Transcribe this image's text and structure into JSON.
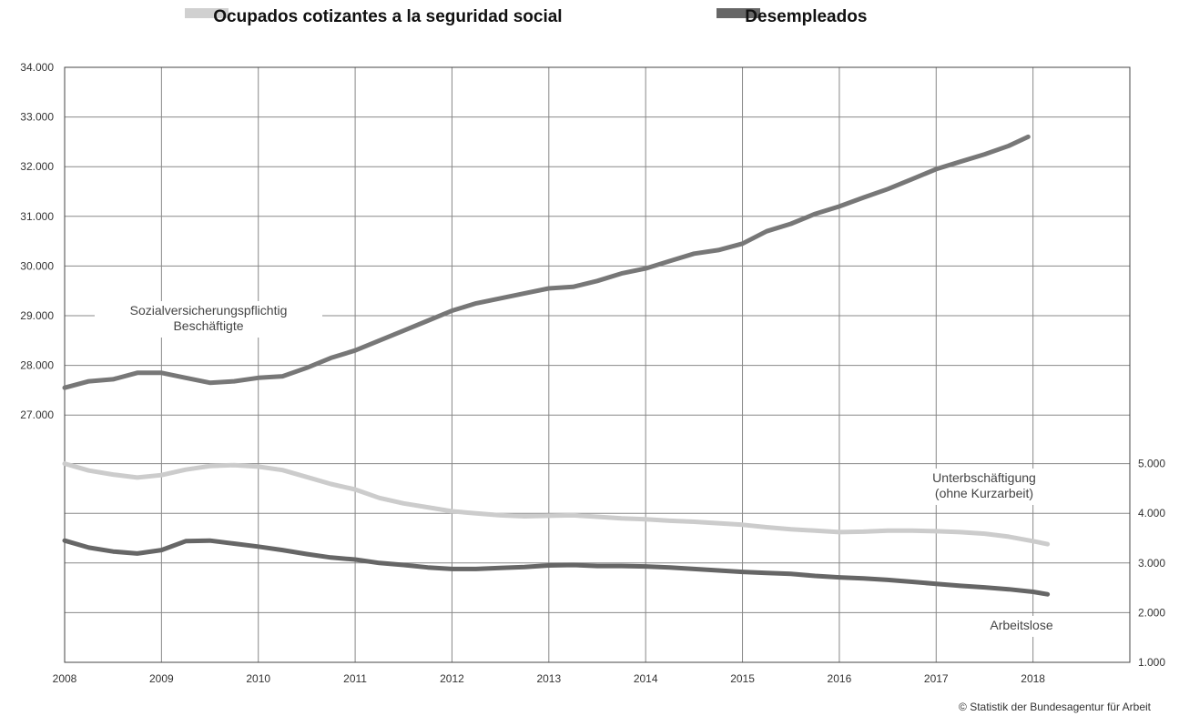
{
  "legend": [
    {
      "label": "Ocupados cotizantes a la seguridad social",
      "color": "#d0d0d0"
    },
    {
      "label": "Desempleados",
      "color": "#666666"
    }
  ],
  "credit": "© Statistik der Bundesagentur für Arbeit",
  "chart_data": {
    "type": "line",
    "grid": true,
    "x_ticks": [
      "2008",
      "2009",
      "2010",
      "2011",
      "2012",
      "2013",
      "2014",
      "2015",
      "2016",
      "2017",
      "2018"
    ],
    "xlim": [
      2008,
      2019
    ],
    "left_axis": {
      "ticks": [
        "34.000",
        "33.000",
        "32.000",
        "31.000",
        "30.000",
        "29.000",
        "28.000",
        "27.000"
      ],
      "ylim": [
        27000,
        34000
      ]
    },
    "right_axis": {
      "ticks": [
        "5.000",
        "4.000",
        "3.000",
        "2.000",
        "1.000"
      ],
      "ylim": [
        1000,
        5000
      ]
    },
    "annotations": [
      {
        "id": "beschaeftigte",
        "lines": [
          "Sozialversicherungspflichtig",
          "Beschäftigte"
        ]
      },
      {
        "id": "unterbeschaeftigung",
        "lines": [
          "Unterbschäftigung",
          "(ohne Kurzarbeit)"
        ]
      },
      {
        "id": "arbeitslose",
        "lines": [
          "Arbeitslose"
        ]
      }
    ],
    "series": [
      {
        "name": "Sozialversicherungspflichtig Beschäftigte",
        "axis": "left",
        "color": "#777777",
        "x": [
          2008.0,
          2008.25,
          2008.5,
          2008.75,
          2009.0,
          2009.25,
          2009.5,
          2009.75,
          2010.0,
          2010.25,
          2010.5,
          2010.75,
          2011.0,
          2011.25,
          2011.5,
          2011.75,
          2012.0,
          2012.25,
          2012.5,
          2012.75,
          2013.0,
          2013.25,
          2013.5,
          2013.75,
          2014.0,
          2014.25,
          2014.5,
          2014.75,
          2015.0,
          2015.25,
          2015.5,
          2015.75,
          2016.0,
          2016.25,
          2016.5,
          2016.75,
          2017.0,
          2017.25,
          2017.5,
          2017.75,
          2017.95
        ],
        "y": [
          27550,
          27680,
          27720,
          27850,
          27850,
          27750,
          27650,
          27680,
          27750,
          27780,
          27950,
          28150,
          28300,
          28500,
          28700,
          28900,
          29100,
          29250,
          29350,
          29450,
          29550,
          29580,
          29700,
          29850,
          29950,
          30100,
          30250,
          30320,
          30450,
          30700,
          30850,
          31050,
          31200,
          31380,
          31550,
          31750,
          31950,
          32100,
          32250,
          32420,
          32600
        ]
      },
      {
        "name": "Unterbschäftigung (ohne Kurzarbeit)",
        "axis": "right",
        "color": "#cccccc",
        "x": [
          2008.0,
          2008.25,
          2008.5,
          2008.75,
          2009.0,
          2009.25,
          2009.5,
          2009.75,
          2010.0,
          2010.25,
          2010.5,
          2010.75,
          2011.0,
          2011.25,
          2011.5,
          2011.75,
          2012.0,
          2012.25,
          2012.5,
          2012.75,
          2013.0,
          2013.25,
          2013.5,
          2013.75,
          2014.0,
          2014.25,
          2014.5,
          2014.75,
          2015.0,
          2015.25,
          2015.5,
          2015.75,
          2016.0,
          2016.25,
          2016.5,
          2016.75,
          2017.0,
          2017.25,
          2017.5,
          2017.75,
          2018.0,
          2018.15
        ],
        "y": [
          5000,
          4860,
          4780,
          4720,
          4770,
          4880,
          4950,
          4970,
          4940,
          4870,
          4730,
          4590,
          4480,
          4310,
          4200,
          4120,
          4040,
          4000,
          3960,
          3940,
          3950,
          3960,
          3930,
          3900,
          3880,
          3850,
          3830,
          3800,
          3770,
          3720,
          3680,
          3650,
          3620,
          3630,
          3650,
          3650,
          3640,
          3620,
          3590,
          3530,
          3440,
          3380
        ]
      },
      {
        "name": "Arbeitslose",
        "axis": "right",
        "color": "#666666",
        "x": [
          2008.0,
          2008.25,
          2008.5,
          2008.75,
          2009.0,
          2009.25,
          2009.5,
          2009.75,
          2010.0,
          2010.25,
          2010.5,
          2010.75,
          2011.0,
          2011.25,
          2011.5,
          2011.75,
          2012.0,
          2012.25,
          2012.5,
          2012.75,
          2013.0,
          2013.25,
          2013.5,
          2013.75,
          2014.0,
          2014.25,
          2014.5,
          2014.75,
          2015.0,
          2015.25,
          2015.5,
          2015.75,
          2016.0,
          2016.25,
          2016.5,
          2016.75,
          2017.0,
          2017.25,
          2017.5,
          2017.75,
          2018.0,
          2018.15
        ],
        "y": [
          3450,
          3310,
          3230,
          3190,
          3260,
          3440,
          3450,
          3390,
          3330,
          3260,
          3180,
          3110,
          3070,
          3000,
          2960,
          2910,
          2880,
          2880,
          2900,
          2920,
          2950,
          2960,
          2940,
          2940,
          2930,
          2910,
          2880,
          2850,
          2820,
          2800,
          2780,
          2740,
          2710,
          2690,
          2660,
          2620,
          2580,
          2540,
          2510,
          2470,
          2420,
          2370
        ]
      }
    ]
  }
}
